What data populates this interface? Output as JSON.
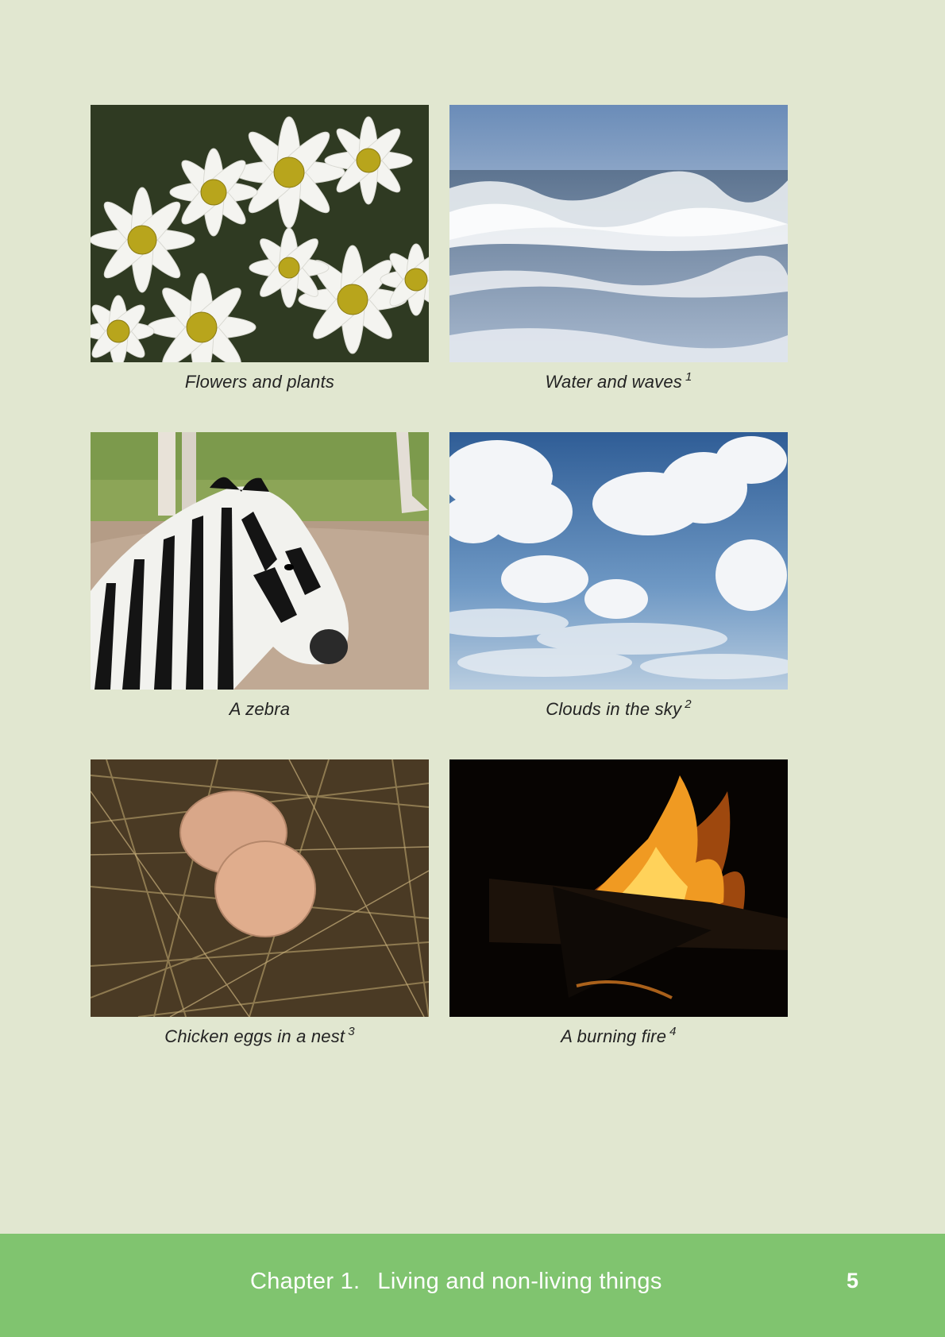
{
  "figures": [
    {
      "caption": "Flowers and plants",
      "note": "",
      "image": "daisies-photo"
    },
    {
      "caption": "Water and waves",
      "note": "1",
      "image": "ocean-waves-photo"
    },
    {
      "caption": "A zebra",
      "note": "",
      "image": "zebra-photo"
    },
    {
      "caption": "Clouds in the sky",
      "note": "2",
      "image": "clouds-photo"
    },
    {
      "caption": "Chicken eggs in a nest",
      "note": "3",
      "image": "eggs-nest-photo"
    },
    {
      "caption": "A burning fire",
      "note": "4",
      "image": "fire-photo"
    }
  ],
  "footer": {
    "chapter_label": "Chapter 1.",
    "chapter_title": "Living and non-living things",
    "page_number": "5"
  },
  "colors": {
    "page_background": "#e1e7d0",
    "footer_background": "#80c46f",
    "footer_text": "#ffffff"
  }
}
